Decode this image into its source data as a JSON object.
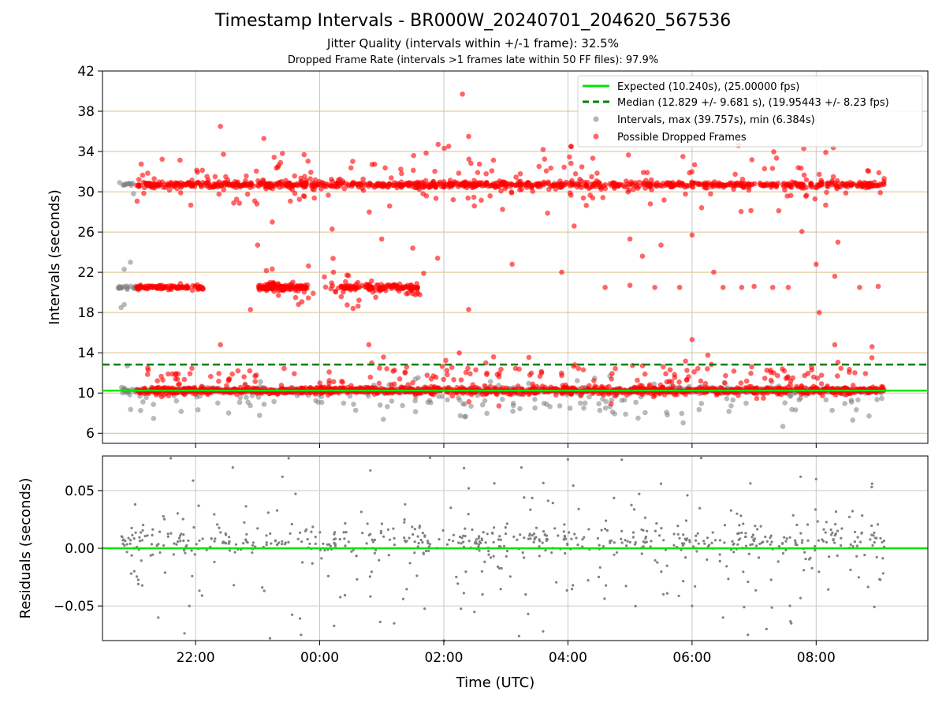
{
  "title": "Timestamp Intervals - BR000W_20240701_204620_567536",
  "subtitle_1": "Jitter Quality (intervals within +/-1 frame): 32.5%",
  "subtitle_2": "Dropped Frame Rate (intervals >1 frames late within 50 FF files): 97.9%",
  "colors": {
    "expected": "#00e600",
    "median": "#008000",
    "intervals": "#808080",
    "dropped": "#ff0000",
    "grid_v": "#c8c8c8",
    "grid_h_top": "#d9c28a",
    "grid_h_bottom": "#cccccc"
  },
  "chart_data": [
    {
      "id": "intervals",
      "type": "scatter",
      "ylabel": "Intervals (seconds)",
      "xlabel": "",
      "x_unit": "hours from 00:00 UTC (date-relative)",
      "xlim": [
        -3.5,
        9.8
      ],
      "ylim": [
        5,
        42
      ],
      "yticks": [
        6,
        10,
        14,
        18,
        22,
        26,
        30,
        34,
        38,
        42
      ],
      "xticks": [
        {
          "x": -2,
          "label": "22:00"
        },
        {
          "x": 0,
          "label": "00:00"
        },
        {
          "x": 2,
          "label": "02:00"
        },
        {
          "x": 4,
          "label": "04:00"
        },
        {
          "x": 6,
          "label": "06:00"
        },
        {
          "x": 8,
          "label": "08:00"
        }
      ],
      "grid": true,
      "legend_position": "top-right",
      "series": [
        {
          "name": "Expected (10.240s), (25.00000 fps)",
          "kind": "hline",
          "y": 10.24
        },
        {
          "name": "Median (12.829 +/- 9.681 s), (19.95443 +/- 8.23 fps)",
          "kind": "hline-dashed",
          "y": 12.829
        },
        {
          "name": "Intervals, max (39.757s), min (6.384s)",
          "kind": "points",
          "clusters": [
            {
              "x_start": -3.2,
              "x_end": 9.1,
              "y_center": 10.24,
              "spread": 0.12,
              "count": 900
            },
            {
              "x_start": -3.1,
              "x_end": 9.1,
              "y_center": 9.3,
              "spread": 1.0,
              "count": 190
            },
            {
              "x_start": -3.25,
              "x_end": -2.95,
              "y_center": 20.5,
              "spread": 0.1,
              "count": 18
            },
            {
              "x_start": -3.25,
              "x_end": -3.0,
              "y_center": 30.7,
              "spread": 0.1,
              "count": 12
            }
          ],
          "extra": [
            [
              -3.2,
              18.5
            ],
            [
              -3.15,
              18.8
            ],
            [
              -3.15,
              22.3
            ],
            [
              -3.05,
              23.0
            ],
            [
              -3.1,
              12.7
            ],
            [
              -3.0,
              29.8
            ],
            [
              -3.1,
              20.3
            ]
          ]
        },
        {
          "name": "Possible Dropped Frames",
          "kind": "points",
          "clusters": [
            {
              "x_start": -2.95,
              "x_end": 9.1,
              "y_center": 10.24,
              "spread": 0.18,
              "count": 1100
            },
            {
              "x_start": -2.95,
              "x_end": 9.1,
              "y_center": 30.7,
              "spread": 0.15,
              "count": 900
            },
            {
              "x_start": -2.95,
              "x_end": 9.1,
              "y_center": 31.0,
              "spread": 1.6,
              "count": 230
            },
            {
              "x_start": -2.95,
              "x_end": -1.85,
              "y_center": 20.5,
              "spread": 0.1,
              "count": 110
            },
            {
              "x_start": -1.0,
              "x_end": -0.2,
              "y_center": 20.5,
              "spread": 0.2,
              "count": 110
            },
            {
              "x_start": 0.3,
              "x_end": 0.8,
              "y_center": 20.5,
              "spread": 0.15,
              "count": 40
            },
            {
              "x_start": 0.8,
              "x_end": 1.6,
              "y_center": 20.5,
              "spread": 0.18,
              "count": 70
            },
            {
              "x_start": -2.9,
              "x_end": 9.1,
              "y_center": 11.5,
              "spread": 1.0,
              "count": 220
            },
            {
              "x_start": -1.2,
              "x_end": 1.7,
              "y_center": 20.2,
              "spread": 1.4,
              "count": 50
            }
          ],
          "extra": [
            [
              -1.0,
              24.7
            ],
            [
              -1.6,
              14.8
            ],
            [
              -1.6,
              36.5
            ],
            [
              -0.9,
              35.3
            ],
            [
              0.2,
              26.3
            ],
            [
              1.0,
              25.3
            ],
            [
              1.5,
              24.4
            ],
            [
              1.9,
              23.4
            ],
            [
              2.3,
              39.7
            ],
            [
              2.4,
              35.5
            ],
            [
              2.4,
              18.3
            ],
            [
              3.1,
              22.8
            ],
            [
              3.6,
              34.2
            ],
            [
              3.9,
              22.0
            ],
            [
              4.05,
              34.5
            ],
            [
              4.1,
              26.6
            ],
            [
              5.0,
              25.3
            ],
            [
              5.2,
              23.6
            ],
            [
              5.5,
              24.7
            ],
            [
              6.0,
              25.7
            ],
            [
              6.0,
              15.3
            ],
            [
              6.35,
              22.0
            ],
            [
              7.8,
              34.3
            ],
            [
              8.0,
              22.8
            ],
            [
              8.05,
              18.0
            ],
            [
              8.3,
              21.6
            ],
            [
              8.3,
              14.8
            ],
            [
              8.35,
              25.0
            ],
            [
              8.9,
              14.6
            ],
            [
              4.6,
              20.5
            ],
            [
              5.4,
              20.5
            ],
            [
              5.8,
              20.5
            ],
            [
              6.8,
              20.5
            ],
            [
              7.3,
              20.5
            ],
            [
              7.55,
              20.5
            ],
            [
              8.7,
              20.5
            ],
            [
              9.0,
              20.6
            ],
            [
              5.0,
              20.7
            ],
            [
              6.5,
              20.5
            ],
            [
              7.0,
              20.6
            ]
          ]
        }
      ]
    },
    {
      "id": "residuals",
      "type": "scatter",
      "ylabel": "Residuals (seconds)",
      "xlabel": "Time (UTC)",
      "xlim": [
        -3.5,
        9.8
      ],
      "ylim": [
        -0.08,
        0.08
      ],
      "yticks": [
        {
          "y": -0.05,
          "label": "−0.05"
        },
        {
          "y": 0.0,
          "label": "0.00"
        },
        {
          "y": 0.05,
          "label": "0.05"
        }
      ],
      "xticks": [
        {
          "x": -2,
          "label": "22:00"
        },
        {
          "x": 0,
          "label": "00:00"
        },
        {
          "x": 2,
          "label": "02:00"
        },
        {
          "x": 4,
          "label": "04:00"
        },
        {
          "x": 6,
          "label": "06:00"
        },
        {
          "x": 8,
          "label": "08:00"
        }
      ],
      "grid": true,
      "series": [
        {
          "name": "",
          "kind": "hline",
          "y": 0.0
        },
        {
          "name": "",
          "kind": "points",
          "clusters": [
            {
              "x_start": -3.2,
              "x_end": 9.1,
              "y_center": 0.006,
              "spread": 0.006,
              "count": 420
            },
            {
              "x_start": -3.2,
              "x_end": 9.1,
              "y_center": 0.0,
              "spread": 0.03,
              "count": 260
            }
          ],
          "extra": [
            [
              -2.4,
              0.078
            ],
            [
              -0.5,
              0.078
            ],
            [
              -1.4,
              0.07
            ],
            [
              3.25,
              0.07
            ],
            [
              4.0,
              0.077
            ],
            [
              -0.8,
              -0.078
            ],
            [
              2.0,
              -0.08
            ],
            [
              -0.3,
              -0.075
            ],
            [
              3.6,
              -0.072
            ],
            [
              6.9,
              -0.075
            ],
            [
              7.2,
              -0.07
            ],
            [
              1.2,
              -0.065
            ],
            [
              7.6,
              -0.065
            ],
            [
              -2.6,
              -0.06
            ],
            [
              6.5,
              -0.06
            ],
            [
              8.0,
              0.06
            ],
            [
              7.75,
              0.062
            ],
            [
              2.4,
              0.052
            ],
            [
              5.5,
              0.056
            ],
            [
              8.9,
              0.056
            ],
            [
              -2.1,
              -0.05
            ],
            [
              6.0,
              -0.05
            ],
            [
              -0.6,
              0.062
            ]
          ]
        }
      ]
    }
  ]
}
